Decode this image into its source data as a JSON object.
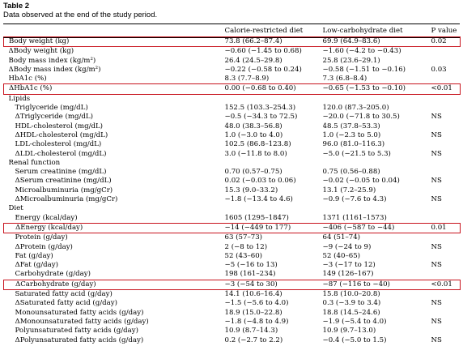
{
  "table_label": "Table 2",
  "caption": "Data observed at the end of the study period.",
  "headers": [
    "",
    "Calorie-restricted diet",
    "Low-carbohydrate diet",
    "P value"
  ],
  "rows": [
    {
      "label": "Body weight (kg)",
      "cr": "73.8 (66.2–87.4)",
      "lc": "69.9 (64.9–83.6)",
      "p": "0.02",
      "indent": false,
      "highlight": true
    },
    {
      "label": "ΔBody weight (kg)",
      "cr": "−0.60 (−1.45 to 0.68)",
      "lc": "−1.60 (−4.2 to −0.43)",
      "p": "",
      "indent": false,
      "highlight": false
    },
    {
      "label": "Body mass index (kg/m²)",
      "cr": "26.4 (24.5–29.8)",
      "lc": "25.8 (23.6–29.1)",
      "p": "",
      "indent": false,
      "highlight": false
    },
    {
      "label": "ΔBody mass index (kg/m²)",
      "cr": "−0.22 (−0.58 to 0.24)",
      "lc": "−0.58 (−1.51 to −0.16)",
      "p": "0.03",
      "indent": false,
      "highlight": false
    },
    {
      "label": "HbA1c (%)",
      "cr": "8.3 (7.7–8.9)",
      "lc": "7.3 (6.8–8.4)",
      "p": "",
      "indent": false,
      "highlight": false
    },
    {
      "label": "ΔHbA1c (%)",
      "cr": "0.00 (−0.68 to 0.40)",
      "lc": "−0.65 (−1.53 to −0.10)",
      "p": "<0.01",
      "indent": false,
      "highlight": true
    },
    {
      "label": "Lipids",
      "cr": "",
      "lc": "",
      "p": "",
      "indent": false,
      "highlight": false
    },
    {
      "label": "Triglyceride (mg/dL)",
      "cr": "152.5 (103.3–254.3)",
      "lc": "120.0 (87.3–205.0)",
      "p": "",
      "indent": true,
      "highlight": false
    },
    {
      "label": "ΔTriglyceride (mg/dL)",
      "cr": "−0.5 (−34.3 to 72.5)",
      "lc": "−20.0 (−71.8 to 30.5)",
      "p": "NS",
      "indent": true,
      "highlight": false
    },
    {
      "label": "HDL-cholesterol (mg/dL)",
      "cr": "48.0 (38.3–56.8)",
      "lc": "48.5 (37.8–53.3)",
      "p": "",
      "indent": true,
      "highlight": false
    },
    {
      "label": "ΔHDL-cholesterol (mg/dL)",
      "cr": "1.0 (−3.0 to 4.0)",
      "lc": "1.0 (−2.3 to 5.0)",
      "p": "NS",
      "indent": true,
      "highlight": false
    },
    {
      "label": "LDL-cholesterol (mg/dL)",
      "cr": "102.5 (86.8–123.8)",
      "lc": "96.0 (81.0–116.3)",
      "p": "",
      "indent": true,
      "highlight": false
    },
    {
      "label": "ΔLDL-cholesterol (mg/dL)",
      "cr": "3.0 (−11.8 to 8.0)",
      "lc": "−5.0 (−21.5 to 5.3)",
      "p": "NS",
      "indent": true,
      "highlight": false
    },
    {
      "label": "Renal function",
      "cr": "",
      "lc": "",
      "p": "",
      "indent": false,
      "highlight": false
    },
    {
      "label": "Serum creatinine (mg/dL)",
      "cr": "0.70 (0.57–0.75)",
      "lc": "0.75 (0.56–0.88)",
      "p": "",
      "indent": true,
      "highlight": false
    },
    {
      "label": "ΔSerum creatinine (mg/dL)",
      "cr": "0.02 (−0.03 to 0.06)",
      "lc": "−0.02 (−0.05 to 0.04)",
      "p": "NS",
      "indent": true,
      "highlight": false
    },
    {
      "label": "Microalbuminuria (mg/gCr)",
      "cr": "15.3 (9.0–33.2)",
      "lc": "13.1 (7.2–25.9)",
      "p": "",
      "indent": true,
      "highlight": false
    },
    {
      "label": "ΔMicroalbuminuria (mg/gCr)",
      "cr": "−1.8 (−13.4 to 4.6)",
      "lc": "−0.9 (−7.6 to 4.3)",
      "p": "NS",
      "indent": true,
      "highlight": false
    },
    {
      "label": "Diet",
      "cr": "",
      "lc": "",
      "p": "",
      "indent": false,
      "highlight": false
    },
    {
      "label": "Energy (kcal/day)",
      "cr": "1605 (1295–1847)",
      "lc": "1371 (1161–1573)",
      "p": "",
      "indent": true,
      "highlight": false
    },
    {
      "label": "ΔEnergy (kcal/day)",
      "cr": "−14 (−449 to 177)",
      "lc": "−406 (−587 to −44)",
      "p": "0.01",
      "indent": true,
      "highlight": true
    },
    {
      "label": "Protein (g/day)",
      "cr": "63 (57–73)",
      "lc": "64 (51–74)",
      "p": "",
      "indent": true,
      "highlight": false
    },
    {
      "label": "ΔProtein (g/day)",
      "cr": "2 (−8 to 12)",
      "lc": "−9 (−24 to 9)",
      "p": "NS",
      "indent": true,
      "highlight": false
    },
    {
      "label": "Fat (g/day)",
      "cr": "52 (43–60)",
      "lc": "52 (40–65)",
      "p": "",
      "indent": true,
      "highlight": false
    },
    {
      "label": "ΔFat (g/day)",
      "cr": "−5 (−16 to 13)",
      "lc": "−3 (−17 to 12)",
      "p": "NS",
      "indent": true,
      "highlight": false
    },
    {
      "label": "Carbohydrate (g/day)",
      "cr": "198 (161–234)",
      "lc": "149 (126–167)",
      "p": "",
      "indent": true,
      "highlight": false
    },
    {
      "label": "ΔCarbohydrate (g/day)",
      "cr": "−3 (−54 to 30)",
      "lc": "−87 (−116 to −40)",
      "p": "<0.01",
      "indent": true,
      "highlight": true
    },
    {
      "label": "Saturated fatty acid (g/day)",
      "cr": "14.1 (10.6–16.4)",
      "lc": "15.8 (10.0–20.8)",
      "p": "",
      "indent": true,
      "highlight": false
    },
    {
      "label": "ΔSaturated fatty acid (g/day)",
      "cr": "−1.5 (−5.6 to 4.0)",
      "lc": "0.3 (−3.9 to 3.4)",
      "p": "NS",
      "indent": true,
      "highlight": false
    },
    {
      "label": "Monounsaturated fatty acids (g/day)",
      "cr": "18.9 (15.0–22.8)",
      "lc": "18.8 (14.5–24.6)",
      "p": "",
      "indent": true,
      "highlight": false
    },
    {
      "label": "ΔMonounsaturated fatty acids (g/day)",
      "cr": "−1.8 (−4.8 to 4.9)",
      "lc": "−1.9 (−5.4 to 4.0)",
      "p": "NS",
      "indent": true,
      "highlight": false
    },
    {
      "label": "Polyunsaturated fatty acids (g/day)",
      "cr": "10.9 (8.7–14.3)",
      "lc": "10.9 (9.7–13.0)",
      "p": "",
      "indent": true,
      "highlight": false
    },
    {
      "label": "ΔPolyunsaturated fatty acids (g/day)",
      "cr": "0.2 (−2.7 to 2.2)",
      "lc": "−0.4 (−5.0 to 1.5)",
      "p": "NS",
      "indent": true,
      "highlight": false
    }
  ]
}
